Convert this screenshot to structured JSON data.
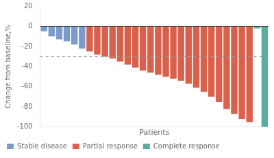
{
  "chart_data": {
    "type": "bar",
    "categories": [
      null,
      null,
      null,
      null,
      null,
      null,
      null,
      null,
      null,
      null,
      null,
      null,
      null,
      null,
      null,
      null,
      null,
      null,
      null,
      null,
      null,
      null,
      null,
      null,
      null,
      null,
      null,
      null,
      null,
      null
    ],
    "series": [
      {
        "name": "Stable disease",
        "color": "#7b9cca",
        "values": [
          -5,
          -10,
          -13,
          -15,
          -18,
          -22,
          null,
          null,
          null,
          null,
          null,
          null,
          null,
          null,
          null,
          null,
          null,
          null,
          null,
          null,
          null,
          null,
          null,
          null,
          null,
          null,
          null,
          null,
          null,
          null
        ]
      },
      {
        "name": "Partial response",
        "color": "#d9614c",
        "values": [
          null,
          null,
          null,
          null,
          null,
          null,
          -25,
          -28,
          -30,
          -32,
          -35,
          -38,
          -41,
          -44,
          -46,
          -48,
          -50,
          -52,
          -54,
          -57,
          -61,
          -65,
          -70,
          -75,
          -82,
          -87,
          -92,
          -95,
          null,
          null
        ]
      },
      {
        "name": "Complete response",
        "color": "#5aad9e",
        "values": [
          null,
          null,
          null,
          null,
          null,
          null,
          null,
          null,
          null,
          null,
          null,
          null,
          null,
          null,
          null,
          null,
          null,
          null,
          null,
          null,
          null,
          null,
          null,
          null,
          null,
          null,
          null,
          null,
          -2,
          -100
        ]
      }
    ],
    "xlabel": "Patients",
    "ylabel": "Change from baseline,%",
    "ylim": [
      -100,
      20
    ],
    "yticks": [
      20,
      0,
      -20,
      -40,
      -60,
      -80,
      -100
    ],
    "reference_lines": [
      {
        "value": -30,
        "line_style": "dashed"
      },
      {
        "value": 0,
        "line_style": "solid"
      }
    ],
    "grid": false,
    "legend": "lower left",
    "tick_labels": "y"
  }
}
